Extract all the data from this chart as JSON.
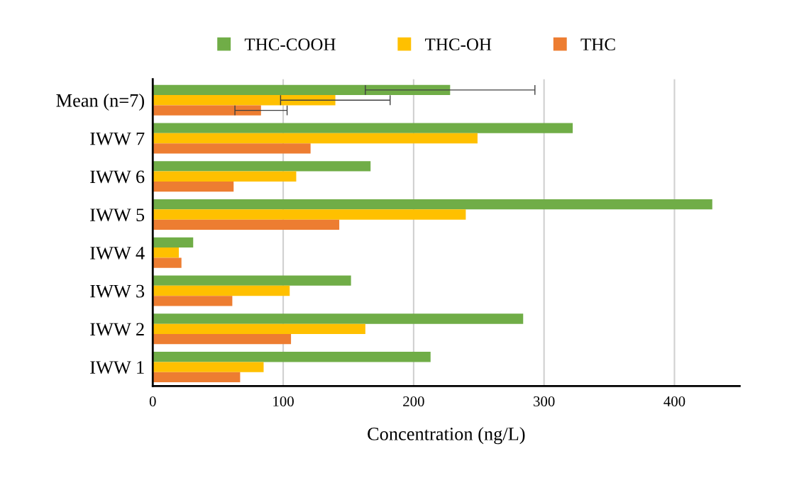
{
  "chart_data": {
    "type": "bar",
    "orientation": "horizontal",
    "xlabel": "Concentration (ng/L)",
    "categories": [
      "Mean (n=7)",
      "IWW 7",
      "IWW 6",
      "IWW 5",
      "IWW 4",
      "IWW 3",
      "IWW 2",
      "IWW 1"
    ],
    "series": [
      {
        "name": "THC-COOH",
        "color": "#70ad47",
        "values": [
          228,
          322,
          167,
          429,
          31,
          152,
          284,
          213
        ],
        "errors": [
          65,
          null,
          null,
          null,
          null,
          null,
          null,
          null
        ]
      },
      {
        "name": "THC-OH",
        "color": "#ffc000",
        "values": [
          140,
          249,
          110,
          240,
          20,
          105,
          163,
          85
        ],
        "errors": [
          42,
          null,
          null,
          null,
          null,
          null,
          null,
          null
        ]
      },
      {
        "name": "THC",
        "color": "#ed7d31",
        "values": [
          83,
          121,
          62,
          143,
          22,
          61,
          106,
          67
        ],
        "errors": [
          20,
          null,
          null,
          null,
          null,
          null,
          null,
          null
        ]
      }
    ],
    "xlim": [
      0,
      450
    ],
    "xticks": [
      0,
      100,
      200,
      300,
      400
    ],
    "grid": "x",
    "legend": "top"
  }
}
